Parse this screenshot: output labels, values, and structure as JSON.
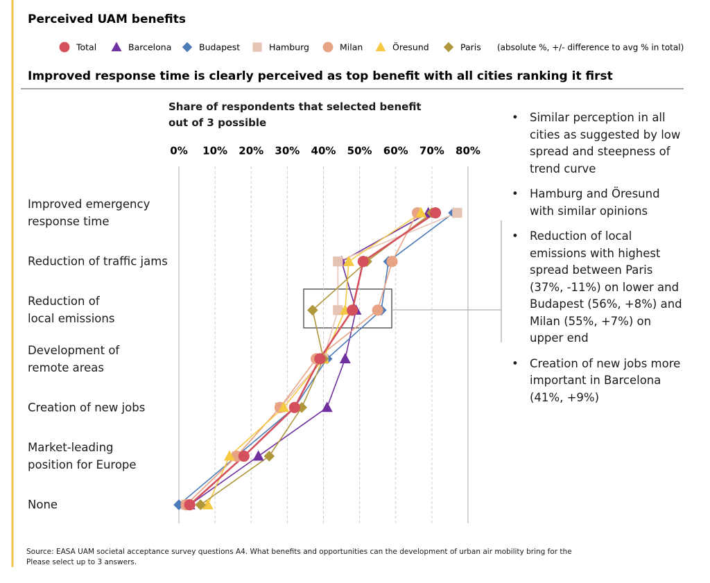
{
  "chart_data": {
    "type": "line",
    "orientation": "horizontal",
    "title": "Perceived UAM benefits",
    "legend_note": "(absolute %, +/- difference to avg % in total)",
    "subtitle": "Improved response time is clearly perceived as top benefit with all cities ranking it first",
    "x_label": "Share of respondents that selected benefit\nout of 3 possible",
    "categories": [
      "Improved emergency\nresponse time",
      "Reduction of traffic jams",
      "Reduction of\nlocal emissions",
      "Development of\nremote areas",
      "Creation of new jobs",
      "Market-leading\nposition for Europe",
      "None"
    ],
    "xlim": [
      0,
      80
    ],
    "xticks": [
      {
        "value": 0,
        "label": "0%"
      },
      {
        "value": 10,
        "label": "10%"
      },
      {
        "value": 20,
        "label": "20%"
      },
      {
        "value": 30,
        "label": "30%"
      },
      {
        "value": 40,
        "label": "40%"
      },
      {
        "value": 50,
        "label": "50%"
      },
      {
        "value": 60,
        "label": "60%"
      },
      {
        "value": 70,
        "label": "70%"
      },
      {
        "value": 80,
        "label": "80%"
      }
    ],
    "grid": true,
    "series": [
      {
        "name": "Barcelona",
        "color": "#7030a0",
        "marker": "triangle",
        "values": [
          69,
          45,
          49,
          46,
          41,
          22,
          3
        ]
      },
      {
        "name": "Budapest",
        "color": "#4a7ab8",
        "marker": "diamond",
        "values": [
          76,
          58,
          56,
          41,
          32,
          16,
          0
        ]
      },
      {
        "name": "Hamburg",
        "color": "#e6c4b4",
        "marker": "square",
        "values": [
          77,
          44,
          44,
          40,
          28,
          16,
          2
        ]
      },
      {
        "name": "Milan",
        "color": "#e8a284",
        "marker": "circle",
        "values": [
          66,
          59,
          55,
          38,
          28,
          16,
          2
        ]
      },
      {
        "name": "Öresund",
        "color": "#f5c842",
        "marker": "triangle",
        "values": [
          67,
          47,
          46,
          40,
          29,
          14,
          8
        ]
      },
      {
        "name": "Paris",
        "color": "#b0973c",
        "marker": "diamond",
        "values": [
          70,
          52,
          37,
          40,
          34,
          25,
          6
        ]
      },
      {
        "name": "Total",
        "color": "#d4505c",
        "marker": "circle",
        "values": [
          71,
          51,
          48,
          39,
          32,
          18,
          3
        ]
      }
    ],
    "legend_order": [
      6,
      0,
      1,
      2,
      3,
      4,
      5
    ],
    "bullets": [
      "Similar perception in all cities as suggested by low spread and steepness of trend curve",
      "Hamburg and Öresund with similar opinions",
      "Reduction of local emissions with highest spread between Paris (37%, -11%) on lower and Budapest (56%, +8%) and Milan (55%, +7%) on upper end",
      "Creation of new jobs more important in Barcelona (41%, +9%)"
    ],
    "source": "Source: EASA UAM societal acceptance survey questions A4. What benefits and opportunities can the development of urban air mobility bring for the\nPlease select up to 3 answers."
  }
}
